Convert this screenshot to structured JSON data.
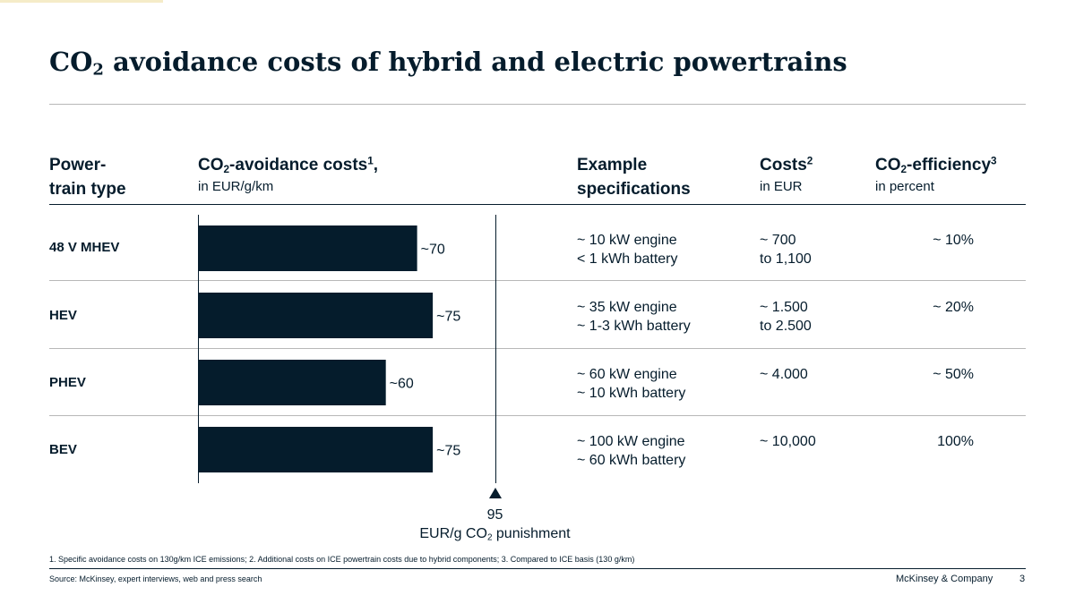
{
  "title": {
    "pre": "CO",
    "sub": "2",
    "post": " avoidance costs of hybrid and electric powertrains"
  },
  "headers": {
    "type": {
      "line1": "Power-",
      "line2": "train type"
    },
    "avoidance": {
      "pre": "CO",
      "sub": "2",
      "post": "-avoidance costs",
      "sup": "1",
      "tail": ",",
      "unit": "in EUR/g/km"
    },
    "specs": {
      "line1": "Example",
      "line2": "specifications"
    },
    "costs": {
      "label": "Costs",
      "sup": "2",
      "unit": "in EUR"
    },
    "efficiency": {
      "pre": "CO",
      "sub": "2",
      "post": "-efficiency",
      "sup": "3",
      "unit": "in percent"
    }
  },
  "rows": [
    {
      "type": "48 V MHEV",
      "spec1": "~ 10 kW engine",
      "spec2": "< 1 kWh battery",
      "cost1": "~ 700",
      "cost2": "to 1,100",
      "efficiency": "~ 10%"
    },
    {
      "type": "HEV",
      "spec1": "~ 35 kW engine",
      "spec2": "~ 1-3 kWh battery",
      "cost1": "~ 1.500",
      "cost2": "to 2.500",
      "efficiency": "~ 20%"
    },
    {
      "type": "PHEV",
      "spec1": "~ 60 kW engine",
      "spec2": "~ 10 kWh battery",
      "cost1": "~ 4.000",
      "cost2": "",
      "efficiency": "~ 50%"
    },
    {
      "type": "BEV",
      "spec1": "~ 100 kW engine",
      "spec2": "~ 60 kWh battery",
      "cost1": "~ 10,000",
      "cost2": "",
      "efficiency": "100%"
    }
  ],
  "chart_data": {
    "type": "bar",
    "orientation": "horizontal",
    "categories": [
      "48 V MHEV",
      "HEV",
      "PHEV",
      "BEV"
    ],
    "values": [
      70,
      75,
      60,
      75
    ],
    "data_labels": [
      "~70",
      "~75",
      "~60",
      "~75"
    ],
    "unit": "EUR/g/km",
    "reference_line": {
      "value": 95,
      "label": "95",
      "caption_pre": "EUR/g CO",
      "caption_sub": "2",
      "caption_post": " punishment"
    },
    "xlim": [
      0,
      95
    ],
    "bar_color": "#051c2c",
    "grid": false,
    "legend": "none"
  },
  "footnote": "1. Specific avoidance costs on 130g/km ICE emissions; 2. Additional costs on ICE powertrain costs due to hybrid components; 3. Compared to ICE basis (130 g/km)",
  "source": "Source: McKinsey, expert interviews, web and press search",
  "brand": "McKinsey & Company",
  "page_number": "3",
  "colors": {
    "text": "#051c2c",
    "bar": "#051c2c",
    "rule": "#b8b8b8",
    "accent": "#f5ecc8"
  }
}
